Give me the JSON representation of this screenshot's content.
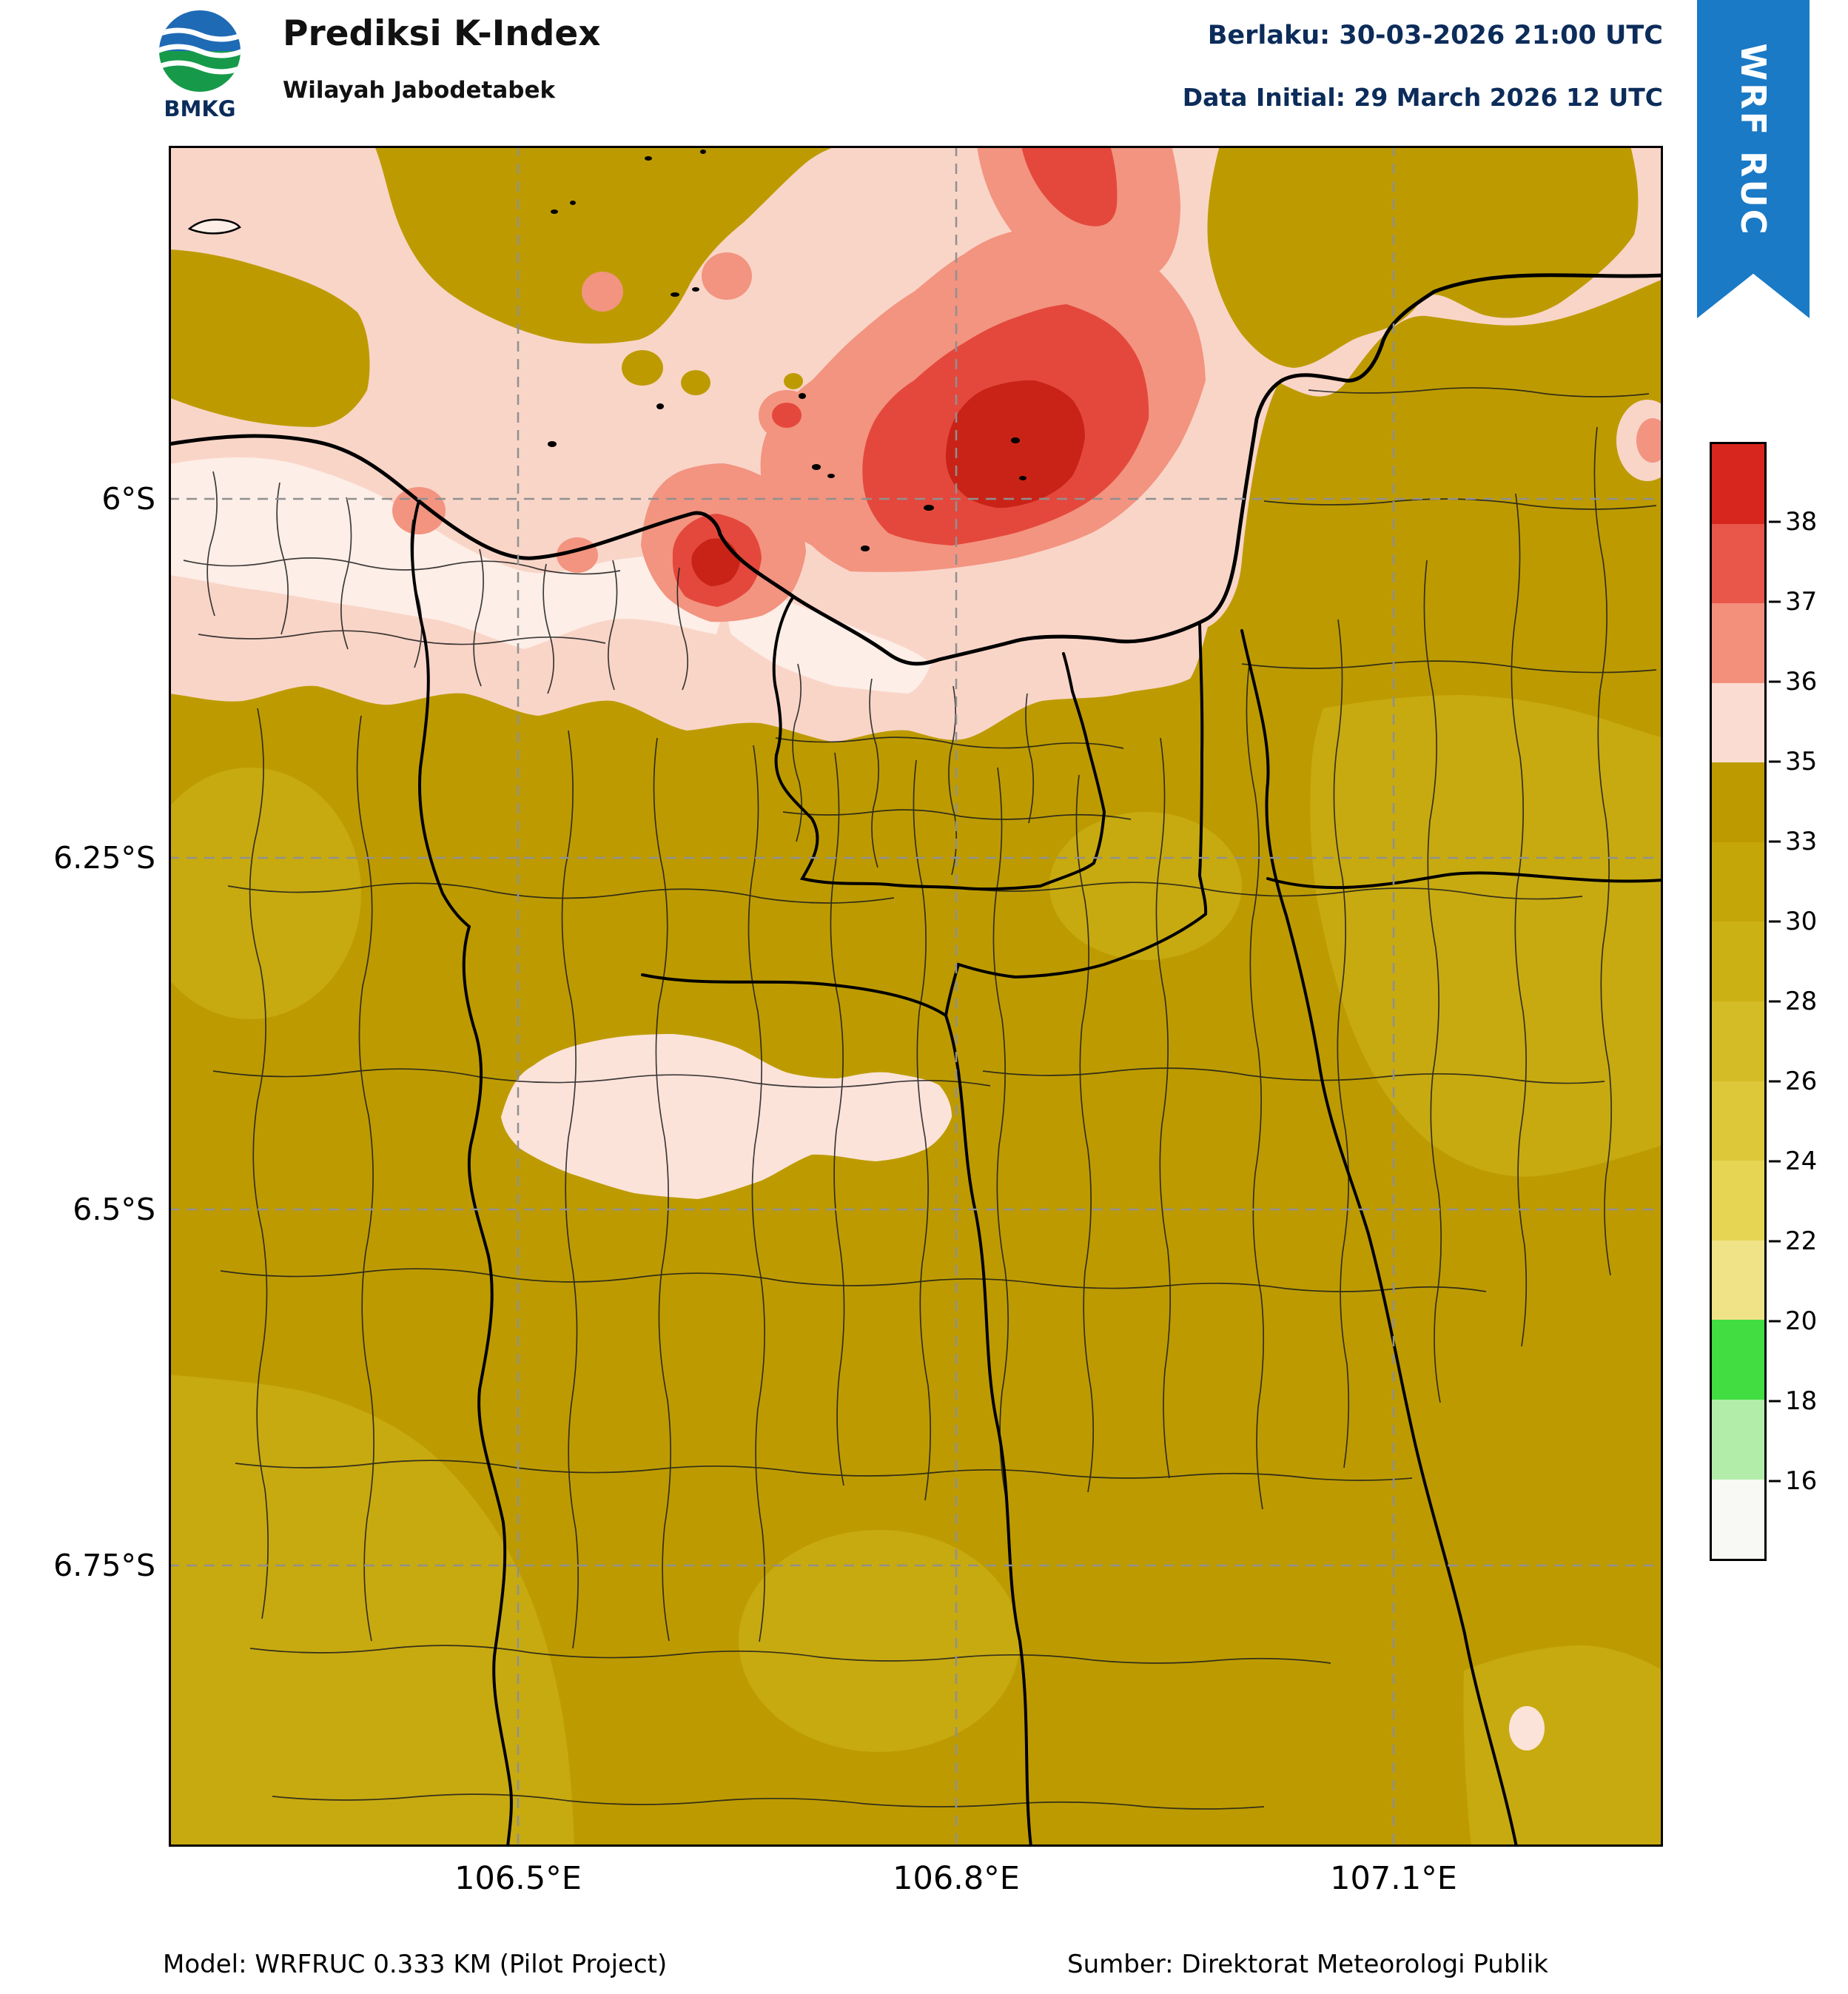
{
  "header": {
    "logo_label": "BMKG",
    "title": "Prediksi K-Index",
    "subtitle": "Wilayah Jabodetabek",
    "valid": "Berlaku: 30-03-2026 21:00 UTC",
    "initial": "Data Initial: 29 March 2026 12 UTC",
    "ribbon": "WRF RUC"
  },
  "axes": {
    "y_ticks": [
      "6°S",
      "6.25°S",
      "6.5°S",
      "6.75°S"
    ],
    "x_ticks": [
      "106.5°E",
      "106.8°E",
      "107.1°E"
    ]
  },
  "colorbar": {
    "ticks": [
      "38",
      "37",
      "36",
      "35",
      "33",
      "30",
      "28",
      "26",
      "24",
      "22",
      "20",
      "18",
      "16"
    ],
    "segments": [
      "#d7261d",
      "#e9564a",
      "#f2907c",
      "#fbdcd2",
      "#bd9b00",
      "#c4a609",
      "#ccb115",
      "#d4bc26",
      "#ddc83a",
      "#e6d553",
      "#f0e387",
      "#41dd41",
      "#b2eeaa",
      "#f8f8f5"
    ]
  },
  "footer": {
    "model": "Model: WRFRUC 0.333 KM (Pilot Project)",
    "source": "Sumber: Direktorat Meteorologi Publik"
  },
  "colors": {
    "ribbon_blue": "#1a7ac6",
    "header_navy": "#0c2c5a"
  },
  "map_colors": {
    "base": "#bd9b00",
    "olive_light": "#c7aa10",
    "pink": "#f9d5c8",
    "pale": "#fdeee7",
    "pale_island": "#fbe3da",
    "salmon": "#f29480",
    "red": "#e4483c",
    "darkred": "#c92318"
  }
}
